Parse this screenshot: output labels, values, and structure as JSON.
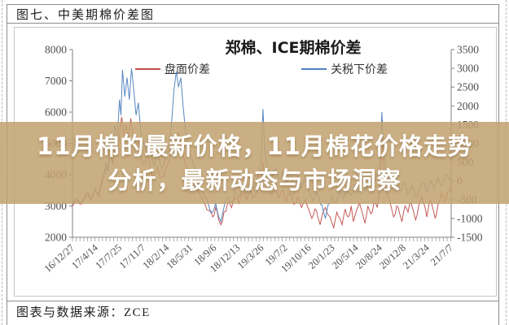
{
  "header": {
    "label": "图七、中美期棉价差图"
  },
  "footer": {
    "source_label": "图表与数据来源：ZCE"
  },
  "banner": {
    "line1": "11月棉的最新价格，11月棉花价格走势",
    "line2": "分析，最新动态与市场洞察"
  },
  "colors": {
    "series_red": "#C0504D",
    "series_blue": "#4F81BD",
    "banner_fill": "rgba(194,162,112,0.86)",
    "axis_line": "#808080",
    "axis_text": "#4d4d4d",
    "title_text": "#1a1a1a"
  },
  "chart_data": {
    "type": "line",
    "title": "郑棉、ICE期棉价差",
    "legend_position": "top",
    "grid": false,
    "y_axis_left": {
      "range": [
        2000,
        8000
      ],
      "ticks": [
        8000,
        7000,
        6000,
        5000,
        4000,
        3000,
        2000
      ]
    },
    "y_axis_right": {
      "range": [
        -1500,
        3500
      ],
      "ticks": [
        3500,
        3000,
        2500,
        2000,
        1500,
        1000,
        500,
        0,
        -500,
        -1000,
        -1500
      ]
    },
    "x_ticks": [
      "16/12/27",
      "17/4/14",
      "17/7/25",
      "17/11/7",
      "18/2/14",
      "18/5/31",
      "18/9/6",
      "18/12/13",
      "19/3/26",
      "19/7/2",
      "19/10/16",
      "20/1/23",
      "20/5/14",
      "20/8/24",
      "20/12/8",
      "21/3/24",
      "21/7/7"
    ],
    "noise": 250,
    "series": [
      {
        "name": "盘面价差",
        "color": "#C0504D",
        "axis": "left",
        "seed": 7,
        "points": [
          [
            0,
            3000
          ],
          [
            0.012,
            3180
          ],
          [
            0.024,
            3060
          ],
          [
            0.036,
            3320
          ],
          [
            0.048,
            3160
          ],
          [
            0.06,
            3480
          ],
          [
            0.07,
            3300
          ],
          [
            0.08,
            3800
          ],
          [
            0.09,
            4200
          ],
          [
            0.1,
            4700
          ],
          [
            0.106,
            4350
          ],
          [
            0.112,
            4900
          ],
          [
            0.118,
            4600
          ],
          [
            0.124,
            5300
          ],
          [
            0.13,
            5850
          ],
          [
            0.136,
            5250
          ],
          [
            0.142,
            5600
          ],
          [
            0.148,
            5150
          ],
          [
            0.154,
            5800
          ],
          [
            0.16,
            5250
          ],
          [
            0.168,
            4850
          ],
          [
            0.174,
            5100
          ],
          [
            0.18,
            4600
          ],
          [
            0.188,
            4350
          ],
          [
            0.196,
            4600
          ],
          [
            0.205,
            4250
          ],
          [
            0.215,
            3950
          ],
          [
            0.225,
            4250
          ],
          [
            0.235,
            3900
          ],
          [
            0.245,
            4150
          ],
          [
            0.255,
            4400
          ],
          [
            0.262,
            4800
          ],
          [
            0.268,
            5300
          ],
          [
            0.274,
            5100
          ],
          [
            0.28,
            5350
          ],
          [
            0.286,
            4900
          ],
          [
            0.292,
            4550
          ],
          [
            0.3,
            4250
          ],
          [
            0.31,
            3950
          ],
          [
            0.32,
            3750
          ],
          [
            0.33,
            3500
          ],
          [
            0.34,
            3250
          ],
          [
            0.35,
            3050
          ],
          [
            0.36,
            2850
          ],
          [
            0.37,
            2650
          ],
          [
            0.378,
            2950
          ],
          [
            0.386,
            2550
          ],
          [
            0.392,
            2400
          ],
          [
            0.4,
            2800
          ],
          [
            0.41,
            3100
          ],
          [
            0.42,
            2950
          ],
          [
            0.43,
            3250
          ],
          [
            0.44,
            3080
          ],
          [
            0.45,
            3400
          ],
          [
            0.46,
            3180
          ],
          [
            0.47,
            3500
          ],
          [
            0.48,
            3300
          ],
          [
            0.49,
            3600
          ],
          [
            0.498,
            3900
          ],
          [
            0.503,
            4400
          ],
          [
            0.508,
            3900
          ],
          [
            0.515,
            3600
          ],
          [
            0.525,
            3350
          ],
          [
            0.535,
            3600
          ],
          [
            0.545,
            3250
          ],
          [
            0.555,
            3500
          ],
          [
            0.565,
            3150
          ],
          [
            0.575,
            3400
          ],
          [
            0.585,
            3050
          ],
          [
            0.595,
            3300
          ],
          [
            0.605,
            2950
          ],
          [
            0.615,
            3200
          ],
          [
            0.625,
            2850
          ],
          [
            0.632,
            2600
          ],
          [
            0.64,
            2900
          ],
          [
            0.648,
            2650
          ],
          [
            0.654,
            2400
          ],
          [
            0.66,
            2750
          ],
          [
            0.668,
            2950
          ],
          [
            0.676,
            2700
          ],
          [
            0.684,
            2500
          ],
          [
            0.69,
            2300
          ],
          [
            0.698,
            2800
          ],
          [
            0.706,
            2600
          ],
          [
            0.712,
            2400
          ],
          [
            0.72,
            2900
          ],
          [
            0.728,
            2650
          ],
          [
            0.736,
            3000
          ],
          [
            0.742,
            2500
          ],
          [
            0.75,
            2850
          ],
          [
            0.758,
            3100
          ],
          [
            0.766,
            2750
          ],
          [
            0.772,
            2450
          ],
          [
            0.78,
            3000
          ],
          [
            0.788,
            2750
          ],
          [
            0.796,
            3100
          ],
          [
            0.805,
            2950
          ],
          [
            0.812,
            3600
          ],
          [
            0.817,
            5300
          ],
          [
            0.822,
            4200
          ],
          [
            0.828,
            3600
          ],
          [
            0.836,
            3250
          ],
          [
            0.842,
            2950
          ],
          [
            0.848,
            2650
          ],
          [
            0.856,
            3000
          ],
          [
            0.864,
            2750
          ],
          [
            0.87,
            2500
          ],
          [
            0.878,
            3000
          ],
          [
            0.886,
            2800
          ],
          [
            0.894,
            3100
          ],
          [
            0.9,
            2850
          ],
          [
            0.906,
            2550
          ],
          [
            0.914,
            3000
          ],
          [
            0.922,
            3300
          ],
          [
            0.93,
            3000
          ],
          [
            0.936,
            2650
          ],
          [
            0.944,
            3200
          ],
          [
            0.952,
            2900
          ],
          [
            0.958,
            2600
          ],
          [
            0.966,
            3100
          ],
          [
            0.974,
            3400
          ],
          [
            0.982,
            3150
          ],
          [
            0.99,
            3450
          ],
          [
            1,
            3600
          ]
        ]
      },
      {
        "name": "关税下价差",
        "color": "#4F81BD",
        "axis": "right",
        "seed": 13,
        "points": [
          [
            0,
            3050
          ],
          [
            0.012,
            3250
          ],
          [
            0.024,
            3100
          ],
          [
            0.036,
            3400
          ],
          [
            0.048,
            3200
          ],
          [
            0.06,
            3550
          ],
          [
            0.07,
            3350
          ],
          [
            0.08,
            3900
          ],
          [
            0.088,
            4400
          ],
          [
            0.094,
            4100
          ],
          [
            0.1,
            5200
          ],
          [
            0.106,
            4700
          ],
          [
            0.112,
            5600
          ],
          [
            0.118,
            5100
          ],
          [
            0.124,
            6400
          ],
          [
            0.128,
            5900
          ],
          [
            0.132,
            7350
          ],
          [
            0.138,
            6500
          ],
          [
            0.144,
            7100
          ],
          [
            0.15,
            6400
          ],
          [
            0.156,
            7400
          ],
          [
            0.162,
            6700
          ],
          [
            0.168,
            5900
          ],
          [
            0.174,
            6300
          ],
          [
            0.18,
            5400
          ],
          [
            0.188,
            5000
          ],
          [
            0.196,
            4600
          ],
          [
            0.205,
            4800
          ],
          [
            0.215,
            4300
          ],
          [
            0.225,
            4600
          ],
          [
            0.235,
            4200
          ],
          [
            0.245,
            4500
          ],
          [
            0.255,
            4800
          ],
          [
            0.262,
            5700
          ],
          [
            0.268,
            6700
          ],
          [
            0.274,
            7300
          ],
          [
            0.28,
            6800
          ],
          [
            0.286,
            7100
          ],
          [
            0.292,
            6200
          ],
          [
            0.3,
            5300
          ],
          [
            0.31,
            4700
          ],
          [
            0.32,
            4300
          ],
          [
            0.33,
            3900
          ],
          [
            0.34,
            3600
          ],
          [
            0.35,
            3250
          ],
          [
            0.36,
            3000
          ],
          [
            0.37,
            2800
          ],
          [
            0.378,
            3100
          ],
          [
            0.386,
            2650
          ],
          [
            0.392,
            2500
          ],
          [
            0.4,
            2950
          ],
          [
            0.41,
            3300
          ],
          [
            0.42,
            3100
          ],
          [
            0.43,
            3500
          ],
          [
            0.44,
            3300
          ],
          [
            0.45,
            3650
          ],
          [
            0.46,
            3400
          ],
          [
            0.47,
            3750
          ],
          [
            0.48,
            3550
          ],
          [
            0.49,
            3950
          ],
          [
            0.498,
            4400
          ],
          [
            0.503,
            6100
          ],
          [
            0.508,
            4800
          ],
          [
            0.515,
            4200
          ],
          [
            0.525,
            3900
          ],
          [
            0.535,
            4200
          ],
          [
            0.545,
            3850
          ],
          [
            0.555,
            4100
          ],
          [
            0.565,
            3750
          ],
          [
            0.575,
            4050
          ],
          [
            0.585,
            3650
          ],
          [
            0.595,
            3950
          ],
          [
            0.605,
            3550
          ],
          [
            0.615,
            3850
          ],
          [
            0.625,
            3450
          ],
          [
            0.635,
            3150
          ],
          [
            0.645,
            3450
          ],
          [
            0.655,
            3050
          ],
          [
            0.663,
            2800
          ],
          [
            0.668,
            2600
          ],
          [
            0.675,
            3050
          ],
          [
            0.685,
            3300
          ],
          [
            0.695,
            3100
          ],
          [
            0.705,
            3500
          ],
          [
            0.715,
            3250
          ],
          [
            0.725,
            3600
          ],
          [
            0.735,
            3350
          ],
          [
            0.745,
            3700
          ],
          [
            0.755,
            3450
          ],
          [
            0.765,
            3800
          ],
          [
            0.775,
            3500
          ],
          [
            0.785,
            3900
          ],
          [
            0.795,
            3600
          ],
          [
            0.805,
            4000
          ],
          [
            0.812,
            4400
          ],
          [
            0.817,
            6000
          ],
          [
            0.822,
            4800
          ],
          [
            0.828,
            4100
          ],
          [
            0.836,
            3800
          ],
          [
            0.845,
            3550
          ],
          [
            0.855,
            3850
          ],
          [
            0.865,
            3500
          ],
          [
            0.875,
            3750
          ],
          [
            0.885,
            3400
          ],
          [
            0.895,
            3650
          ],
          [
            0.905,
            3300
          ],
          [
            0.915,
            3550
          ],
          [
            0.925,
            3750
          ],
          [
            0.935,
            3450
          ],
          [
            0.945,
            3800
          ],
          [
            0.955,
            3550
          ],
          [
            0.965,
            3900
          ],
          [
            0.975,
            3650
          ],
          [
            0.985,
            4000
          ],
          [
            1,
            3800
          ]
        ]
      }
    ]
  }
}
